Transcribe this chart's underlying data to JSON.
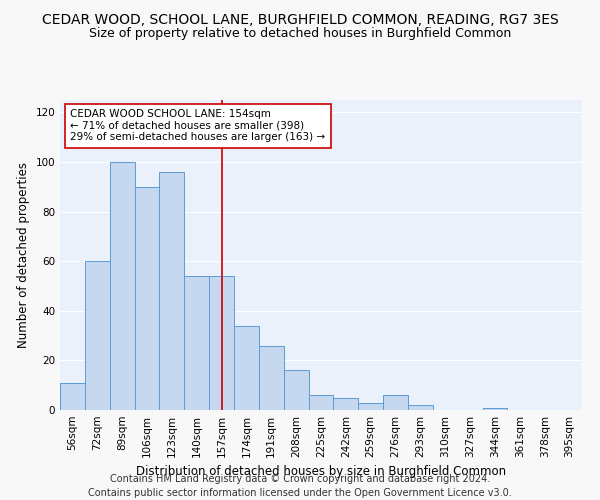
{
  "title": "CEDAR WOOD, SCHOOL LANE, BURGHFIELD COMMON, READING, RG7 3ES",
  "subtitle": "Size of property relative to detached houses in Burghfield Common",
  "xlabel": "Distribution of detached houses by size in Burghfield Common",
  "ylabel": "Number of detached properties",
  "categories": [
    "56sqm",
    "72sqm",
    "89sqm",
    "106sqm",
    "123sqm",
    "140sqm",
    "157sqm",
    "174sqm",
    "191sqm",
    "208sqm",
    "225sqm",
    "242sqm",
    "259sqm",
    "276sqm",
    "293sqm",
    "310sqm",
    "327sqm",
    "344sqm",
    "361sqm",
    "378sqm",
    "395sqm"
  ],
  "values": [
    11,
    60,
    100,
    90,
    96,
    54,
    54,
    34,
    26,
    16,
    6,
    5,
    3,
    6,
    2,
    0,
    0,
    1,
    0,
    0,
    0
  ],
  "bar_color": "#c5d8f0",
  "bar_edge_color": "#5b9bd5",
  "reference_line_color": "#cc0000",
  "annotation_text": "CEDAR WOOD SCHOOL LANE: 154sqm\n← 71% of detached houses are smaller (398)\n29% of semi-detached houses are larger (163) →",
  "annotation_box_color": "#ffffff",
  "annotation_box_edge_color": "#cc0000",
  "ylim": [
    0,
    125
  ],
  "yticks": [
    0,
    20,
    40,
    60,
    80,
    100,
    120
  ],
  "background_color": "#eaf1fb",
  "grid_color": "#ffffff",
  "footer_line1": "Contains HM Land Registry data © Crown copyright and database right 2024.",
  "footer_line2": "Contains public sector information licensed under the Open Government Licence v3.0.",
  "title_fontsize": 10,
  "subtitle_fontsize": 9,
  "xlabel_fontsize": 8.5,
  "ylabel_fontsize": 8.5,
  "tick_fontsize": 7.5,
  "annotation_fontsize": 7.5,
  "footer_fontsize": 7
}
